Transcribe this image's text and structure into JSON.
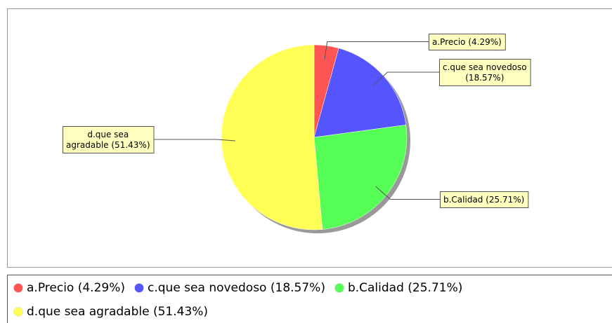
{
  "chart_data": {
    "type": "pie",
    "categories": [
      "a.Precio (4.29%)",
      "c.que sea novedoso (18.57%)",
      "b.Calidad  (25.71%)",
      "d.que sea agradable (51.43%)"
    ],
    "values": [
      4.29,
      18.57,
      25.71,
      51.43
    ],
    "colors": [
      "#ff5555",
      "#5555ff",
      "#55ff55",
      "#ffff55"
    ],
    "legend": "bottom"
  }
}
